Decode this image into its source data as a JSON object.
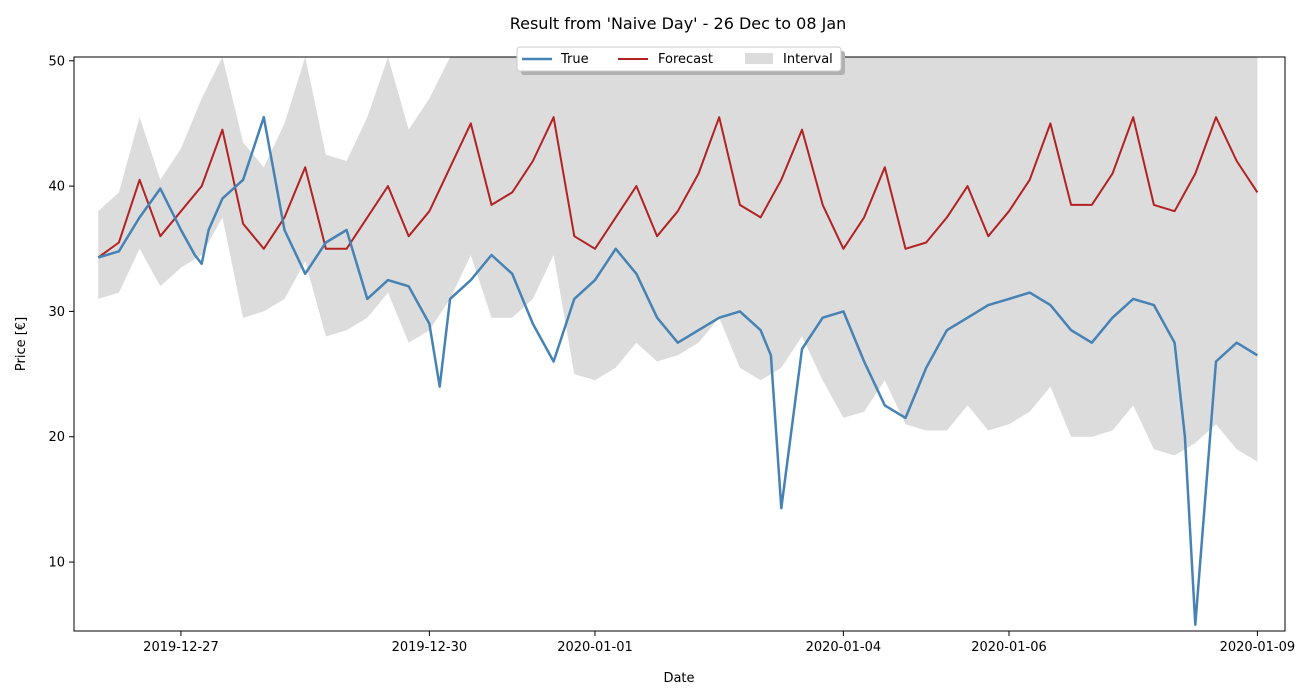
{
  "chart_data": {
    "type": "line",
    "title": "Result from 'Naive Day' - 26 Dec to 08 Jan",
    "xlabel": "Date",
    "ylabel": "Price [€]",
    "xlim": [
      "2019-12-25T17:00",
      "2020-01-09T08:00"
    ],
    "ylim": [
      4.5,
      50.3
    ],
    "x_ticks": [
      {
        "date": "2019-12-27",
        "label": "2019-12-27"
      },
      {
        "date": "2019-12-30",
        "label": "2019-12-30"
      },
      {
        "date": "2020-01-01",
        "label": "2020-01-01"
      },
      {
        "date": "2020-01-04",
        "label": "2020-01-04"
      },
      {
        "date": "2020-01-06",
        "label": "2020-01-06"
      },
      {
        "date": "2020-01-09",
        "label": "2020-01-09"
      }
    ],
    "y_ticks": [
      10,
      20,
      30,
      40,
      50
    ],
    "grid": false,
    "legend": {
      "placement": "top-center",
      "entries": [
        "True",
        "Forecast",
        "Interval"
      ]
    },
    "colors": {
      "true": "#4682b4",
      "forecast": "#b22222",
      "interval": "#dcdcdc"
    },
    "series": [
      {
        "name": "True",
        "x": [
          "2019-12-26T00:00",
          "2019-12-26T06:00",
          "2019-12-26T12:00",
          "2019-12-26T18:00",
          "2019-12-27T00:00",
          "2019-12-27T04:00",
          "2019-12-27T06:00",
          "2019-12-27T08:00",
          "2019-12-27T12:00",
          "2019-12-27T18:00",
          "2019-12-28T00:00",
          "2019-12-28T06:00",
          "2019-12-28T12:00",
          "2019-12-28T18:00",
          "2019-12-29T00:00",
          "2019-12-29T06:00",
          "2019-12-29T12:00",
          "2019-12-29T18:00",
          "2019-12-30T00:00",
          "2019-12-30T03:00",
          "2019-12-30T06:00",
          "2019-12-30T12:00",
          "2019-12-30T18:00",
          "2019-12-31T00:00",
          "2019-12-31T06:00",
          "2019-12-31T12:00",
          "2019-12-31T18:00",
          "2020-01-01T00:00",
          "2020-01-01T06:00",
          "2020-01-01T12:00",
          "2020-01-01T18:00",
          "2020-01-02T00:00",
          "2020-01-02T06:00",
          "2020-01-02T12:00",
          "2020-01-02T18:00",
          "2020-01-03T00:00",
          "2020-01-03T03:00",
          "2020-01-03T06:00",
          "2020-01-03T12:00",
          "2020-01-03T18:00",
          "2020-01-04T00:00",
          "2020-01-04T06:00",
          "2020-01-04T12:00",
          "2020-01-04T18:00",
          "2020-01-05T00:00",
          "2020-01-05T06:00",
          "2020-01-05T12:00",
          "2020-01-05T18:00",
          "2020-01-06T00:00",
          "2020-01-06T06:00",
          "2020-01-06T12:00",
          "2020-01-06T18:00",
          "2020-01-07T00:00",
          "2020-01-07T06:00",
          "2020-01-07T12:00",
          "2020-01-07T18:00",
          "2020-01-08T00:00",
          "2020-01-08T03:00",
          "2020-01-08T06:00",
          "2020-01-08T12:00",
          "2020-01-08T18:00",
          "2020-01-09T00:00"
        ],
        "values": [
          34.3,
          34.8,
          37.5,
          39.8,
          36.5,
          34.5,
          33.8,
          36.5,
          39.0,
          40.5,
          45.5,
          36.5,
          33.0,
          35.5,
          36.5,
          31.0,
          32.5,
          32.0,
          29.0,
          24.0,
          31.0,
          32.5,
          34.5,
          33.0,
          29.0,
          26.0,
          31.0,
          32.5,
          35.0,
          33.0,
          29.5,
          27.5,
          28.5,
          29.5,
          30.0,
          28.5,
          26.5,
          14.3,
          27.0,
          29.5,
          30.0,
          26.0,
          22.5,
          21.5,
          25.5,
          28.5,
          29.5,
          30.5,
          31.0,
          31.5,
          30.5,
          28.5,
          27.5,
          29.5,
          31.0,
          30.5,
          27.5,
          20.0,
          5.0,
          26.0,
          27.5,
          26.5
        ]
      },
      {
        "name": "Forecast",
        "x": [
          "2019-12-26T00:00",
          "2019-12-26T06:00",
          "2019-12-26T12:00",
          "2019-12-26T18:00",
          "2019-12-27T00:00",
          "2019-12-27T06:00",
          "2019-12-27T12:00",
          "2019-12-27T18:00",
          "2019-12-28T00:00",
          "2019-12-28T06:00",
          "2019-12-28T12:00",
          "2019-12-28T18:00",
          "2019-12-29T00:00",
          "2019-12-29T06:00",
          "2019-12-29T12:00",
          "2019-12-29T18:00",
          "2019-12-30T00:00",
          "2019-12-30T06:00",
          "2019-12-30T12:00",
          "2019-12-30T18:00",
          "2019-12-31T00:00",
          "2019-12-31T06:00",
          "2019-12-31T12:00",
          "2019-12-31T18:00",
          "2020-01-01T00:00",
          "2020-01-01T06:00",
          "2020-01-01T12:00",
          "2020-01-01T18:00",
          "2020-01-02T00:00",
          "2020-01-02T06:00",
          "2020-01-02T12:00",
          "2020-01-02T18:00",
          "2020-01-03T00:00",
          "2020-01-03T06:00",
          "2020-01-03T12:00",
          "2020-01-03T18:00",
          "2020-01-04T00:00",
          "2020-01-04T06:00",
          "2020-01-04T12:00",
          "2020-01-04T18:00",
          "2020-01-05T00:00",
          "2020-01-05T06:00",
          "2020-01-05T12:00",
          "2020-01-05T18:00",
          "2020-01-06T00:00",
          "2020-01-06T06:00",
          "2020-01-06T12:00",
          "2020-01-06T18:00",
          "2020-01-07T00:00",
          "2020-01-07T06:00",
          "2020-01-07T12:00",
          "2020-01-07T18:00",
          "2020-01-08T00:00",
          "2020-01-08T06:00",
          "2020-01-08T12:00",
          "2020-01-08T18:00",
          "2020-01-09T00:00"
        ],
        "values": [
          34.3,
          35.5,
          40.5,
          36.0,
          38.0,
          40.0,
          44.5,
          37.0,
          35.0,
          37.5,
          41.5,
          35.0,
          35.0,
          37.5,
          40.0,
          36.0,
          38.0,
          41.5,
          45.0,
          38.5,
          39.5,
          42.0,
          45.5,
          36.0,
          35.0,
          37.5,
          40.0,
          36.0,
          38.0,
          41.0,
          45.5,
          38.5,
          37.5,
          40.5,
          44.5,
          38.5,
          35.0,
          37.5,
          41.5,
          35.0,
          35.5,
          37.5,
          40.0,
          36.0,
          38.0,
          40.5,
          45.0,
          38.5,
          38.5,
          41.0,
          45.5,
          38.5,
          38.0,
          41.0,
          45.5,
          42.0,
          39.5
        ]
      }
    ],
    "interval": {
      "name": "Interval",
      "x": [
        "2019-12-26T00:00",
        "2019-12-26T06:00",
        "2019-12-26T12:00",
        "2019-12-26T18:00",
        "2019-12-27T00:00",
        "2019-12-27T06:00",
        "2019-12-27T12:00",
        "2019-12-27T18:00",
        "2019-12-28T00:00",
        "2019-12-28T06:00",
        "2019-12-28T12:00",
        "2019-12-28T18:00",
        "2019-12-29T00:00",
        "2019-12-29T06:00",
        "2019-12-29T12:00",
        "2019-12-29T18:00",
        "2019-12-30T00:00",
        "2019-12-30T06:00",
        "2019-12-30T12:00",
        "2019-12-30T18:00",
        "2019-12-31T00:00",
        "2019-12-31T06:00",
        "2019-12-31T12:00",
        "2019-12-31T18:00",
        "2020-01-01T00:00",
        "2020-01-01T06:00",
        "2020-01-01T12:00",
        "2020-01-01T18:00",
        "2020-01-02T00:00",
        "2020-01-02T06:00",
        "2020-01-02T12:00",
        "2020-01-02T18:00",
        "2020-01-03T00:00",
        "2020-01-03T06:00",
        "2020-01-03T12:00",
        "2020-01-03T18:00",
        "2020-01-04T00:00",
        "2020-01-04T06:00",
        "2020-01-04T12:00",
        "2020-01-04T18:00",
        "2020-01-05T00:00",
        "2020-01-05T06:00",
        "2020-01-05T12:00",
        "2020-01-05T18:00",
        "2020-01-06T00:00",
        "2020-01-06T06:00",
        "2020-01-06T12:00",
        "2020-01-06T18:00",
        "2020-01-07T00:00",
        "2020-01-07T06:00",
        "2020-01-07T12:00",
        "2020-01-07T18:00",
        "2020-01-08T00:00",
        "2020-01-08T06:00",
        "2020-01-08T12:00",
        "2020-01-08T18:00",
        "2020-01-09T00:00"
      ],
      "lower": [
        31.0,
        31.5,
        35.0,
        32.0,
        33.5,
        34.5,
        37.5,
        29.5,
        30.0,
        31.0,
        34.0,
        28.0,
        28.5,
        29.5,
        31.5,
        27.5,
        28.5,
        31.0,
        34.5,
        29.5,
        29.5,
        31.0,
        34.5,
        25.0,
        24.5,
        25.5,
        27.5,
        26.0,
        26.5,
        27.5,
        29.5,
        25.5,
        24.5,
        25.5,
        28.0,
        24.5,
        21.5,
        22.0,
        24.5,
        21.0,
        20.5,
        20.5,
        22.5,
        20.5,
        21.0,
        22.0,
        24.0,
        20.0,
        20.0,
        20.5,
        22.5,
        19.0,
        18.5,
        19.5,
        21.0,
        19.0,
        18.0
      ],
      "upper": [
        38.0,
        39.5,
        45.5,
        40.5,
        43.0,
        47.0,
        50.3,
        43.5,
        41.5,
        45.0,
        50.3,
        42.5,
        42.0,
        45.5,
        50.3,
        44.5,
        47.0,
        50.3,
        50.3,
        50.3,
        50.3,
        50.3,
        50.3,
        50.3,
        50.3,
        50.3,
        50.3,
        50.3,
        50.3,
        50.3,
        50.3,
        50.3,
        50.3,
        50.3,
        50.3,
        50.3,
        50.3,
        50.3,
        50.3,
        50.3,
        50.3,
        50.3,
        50.3,
        50.3,
        50.3,
        50.3,
        50.3,
        50.3,
        50.3,
        50.3,
        50.3,
        50.3,
        50.3,
        50.3,
        50.3,
        50.3,
        50.3
      ]
    }
  }
}
